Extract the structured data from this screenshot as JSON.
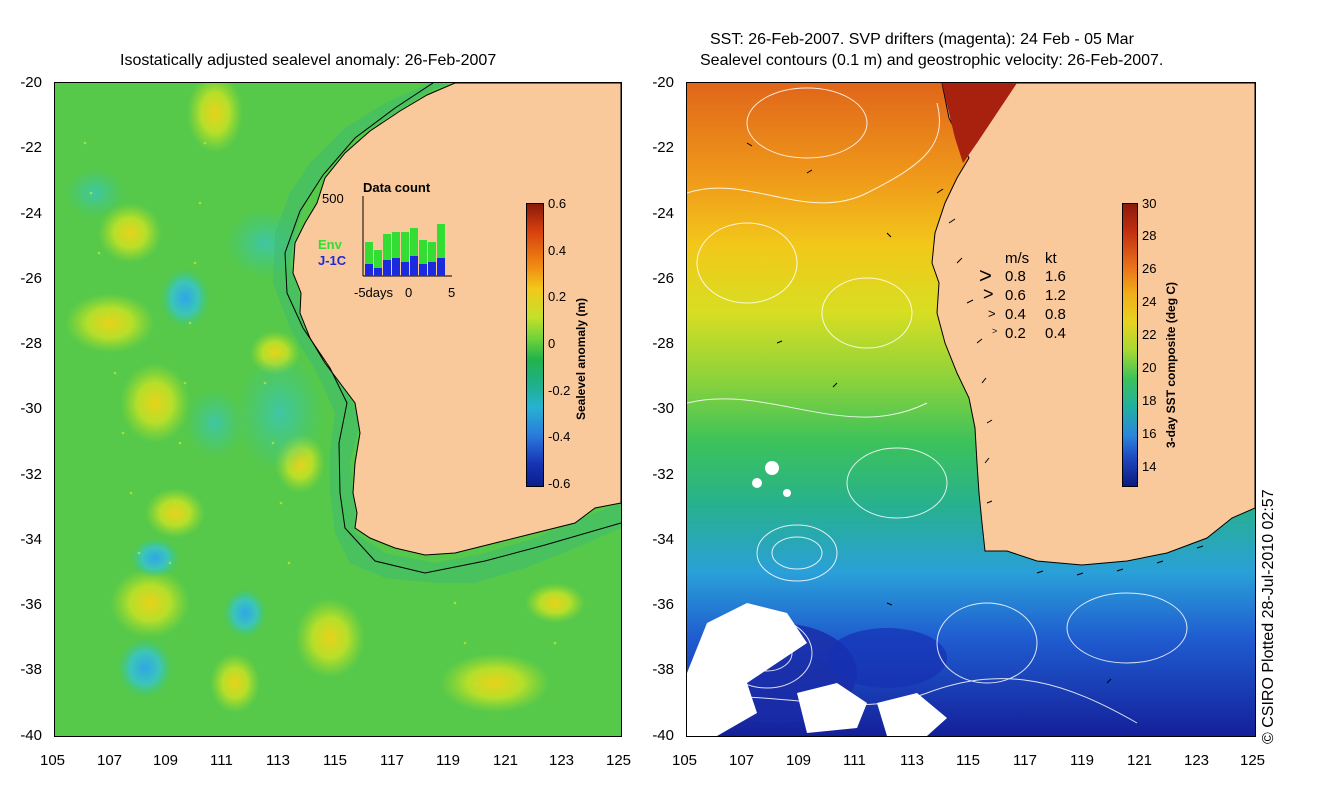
{
  "left_panel": {
    "title": "Isostatically adjusted sealevel anomaly: 26-Feb-2007",
    "colorbar_label": "Sealevel anomaly (m)",
    "colorbar_ticks": [
      "0.6",
      "0.4",
      "0.2",
      "0",
      "-0.2",
      "-0.4",
      "-0.6"
    ],
    "colorbar_colors": {
      "top": "#8b1a0a",
      "mid": "#22b34a",
      "bottom": "#0a1e8c"
    },
    "inset": {
      "title": "Data count",
      "ymax_label": "500",
      "legend_env": "Env",
      "legend_j1c": "J-1C",
      "x_labels": [
        "-5days",
        "0",
        "5"
      ],
      "env_color": "#33dd33",
      "j1c_color": "#1a2adc"
    }
  },
  "right_panel": {
    "title_line1": "SST: 26-Feb-2007. SVP drifters (magenta): 24 Feb - 05 Mar",
    "title_line2": "Sealevel contours (0.1 m) and geostrophic velocity: 26-Feb-2007.",
    "colorbar_label": "3-day SST composite (deg C)",
    "colorbar_ticks": [
      "30",
      "28",
      "26",
      "24",
      "22",
      "20",
      "18",
      "16",
      "14"
    ],
    "velocity_legend": {
      "header_ms": "m/s",
      "header_kt": "kt",
      "rows": [
        {
          "ms": "0.8",
          "kt": "1.6"
        },
        {
          "ms": "0.6",
          "kt": "1.2"
        },
        {
          "ms": "0.4",
          "kt": "0.8"
        },
        {
          "ms": "0.2",
          "kt": "0.4"
        }
      ]
    }
  },
  "axes": {
    "x_ticks": [
      "105",
      "107",
      "109",
      "111",
      "113",
      "115",
      "117",
      "119",
      "121",
      "123",
      "125"
    ],
    "y_ticks": [
      "-20",
      "-22",
      "-24",
      "-26",
      "-28",
      "-30",
      "-32",
      "-34",
      "-36",
      "-38",
      "-40"
    ]
  },
  "land_color": "#f9c89b",
  "copyright": "© CSIRO Plotted 28-Jul-2010 02:57"
}
